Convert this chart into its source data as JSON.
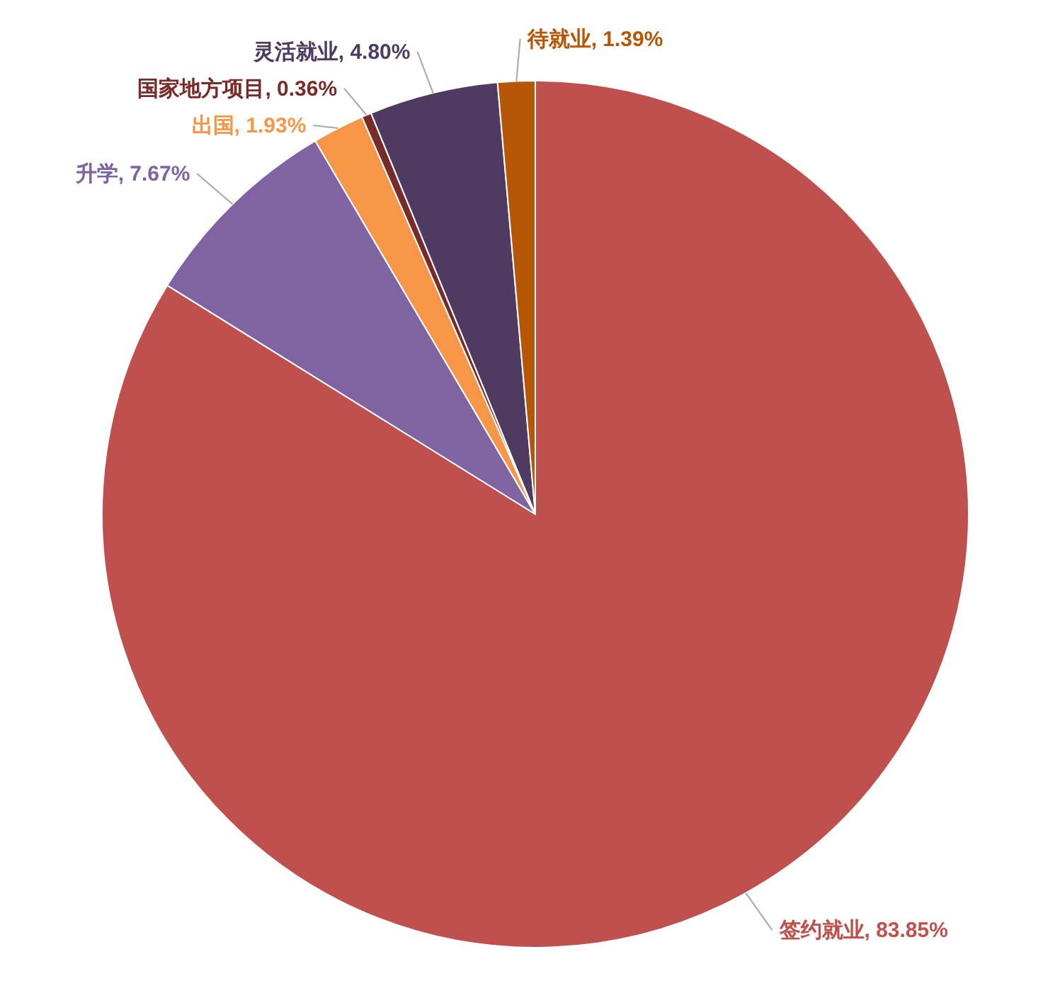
{
  "chart_data": {
    "type": "pie",
    "categories": [
      "签约就业",
      "升学",
      "出国",
      "国家地方项目",
      "灵活就业",
      "待就业"
    ],
    "values": [
      83.85,
      7.67,
      1.93,
      0.36,
      4.8,
      1.39
    ],
    "value_labels": [
      "83.85%",
      "7.67%",
      "1.93%",
      "0.36%",
      "4.80%",
      "1.39%"
    ],
    "colors": [
      "#c0504d",
      "#8064a2",
      "#f79646",
      "#772c2a",
      "#4f3b62",
      "#b65708"
    ],
    "data_labels": true
  }
}
